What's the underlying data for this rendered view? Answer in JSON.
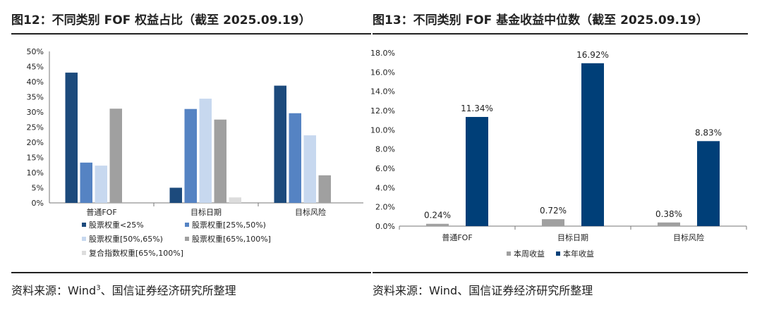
{
  "left": {
    "title": "图12：不同类别 FOF 权益占比（截至 2025.09.19）",
    "source_prefix": "资料来源：Wind",
    "source_sup": "3",
    "source_suffix": "、国信证券经济研究所整理"
  },
  "right": {
    "title": "图13：不同类别 FOF 基金收益中位数（截至 2025.09.19）",
    "source": "资料来源：Wind、国信证券经济研究所整理"
  },
  "chart_data": [
    {
      "type": "bar",
      "categories": [
        "普通FOF",
        "目标日期",
        "目标风险"
      ],
      "series": [
        {
          "name": "股票权重<25%",
          "color": "#1c4a7c",
          "values": [
            43.0,
            5.0,
            38.7
          ]
        },
        {
          "name": "股票权重[25%,50%)",
          "color": "#5583c3",
          "values": [
            13.3,
            31.0,
            29.6
          ]
        },
        {
          "name": "股票权重[50%,65%)",
          "color": "#c7d8ef",
          "values": [
            12.3,
            34.4,
            22.3
          ]
        },
        {
          "name": "股票权重[65%,100%]",
          "color": "#a0a0a0",
          "values": [
            31.1,
            27.5,
            9.1
          ]
        },
        {
          "name": "复合指数权重[65%,100%]",
          "color": "#dcdcdc",
          "values": [
            0.0,
            1.8,
            0.0
          ]
        }
      ],
      "yticks": [
        "0%",
        "5%",
        "10%",
        "15%",
        "20%",
        "25%",
        "30%",
        "35%",
        "40%",
        "45%",
        "50%"
      ],
      "ylim": [
        0,
        50
      ],
      "grid": false,
      "legend": "bottom"
    },
    {
      "type": "bar",
      "categories": [
        "普通FOF",
        "目标日期",
        "目标风险"
      ],
      "series": [
        {
          "name": "本周收益",
          "color": "#a0a0a0",
          "values": [
            0.24,
            0.72,
            0.38
          ],
          "labels": [
            "0.24%",
            "0.72%",
            "0.38%"
          ]
        },
        {
          "name": "本年收益",
          "color": "#003f78",
          "values": [
            11.34,
            16.92,
            8.83
          ],
          "labels": [
            "11.34%",
            "16.92%",
            "8.83%"
          ]
        }
      ],
      "yticks": [
        "0.0%",
        "2.0%",
        "4.0%",
        "6.0%",
        "8.0%",
        "10.0%",
        "12.0%",
        "14.0%",
        "16.0%",
        "18.0%"
      ],
      "ylim": [
        0,
        18
      ],
      "grid": false,
      "legend": "bottom"
    }
  ]
}
